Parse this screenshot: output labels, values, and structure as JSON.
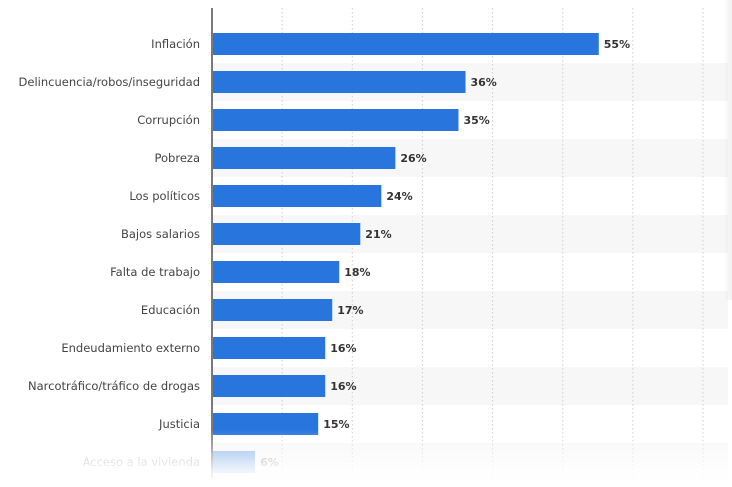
{
  "chart_data": {
    "type": "bar",
    "orientation": "horizontal",
    "categories": [
      "Inflación",
      "Delincuencia/robos/inseguridad",
      "Corrupción",
      "Pobreza",
      "Los políticos",
      "Bajos salarios",
      "Falta de trabajo",
      "Educación",
      "Endeudamiento externo",
      "Narcotráfico/tráfico de drogas",
      "Justicia",
      "Acceso a la vivienda"
    ],
    "values": [
      55,
      36,
      35,
      26,
      24,
      21,
      18,
      17,
      16,
      16,
      15,
      6
    ],
    "value_labels": [
      "55%",
      "36%",
      "35%",
      "26%",
      "24%",
      "21%",
      "18%",
      "17%",
      "16%",
      "16%",
      "15%",
      "6%"
    ],
    "title": "",
    "xlabel": "",
    "ylabel": "",
    "xlim": [
      0,
      70
    ],
    "grid": true,
    "legend": "none",
    "colors": {
      "bar": "#2876dd",
      "band": "#f7f7f7"
    }
  }
}
